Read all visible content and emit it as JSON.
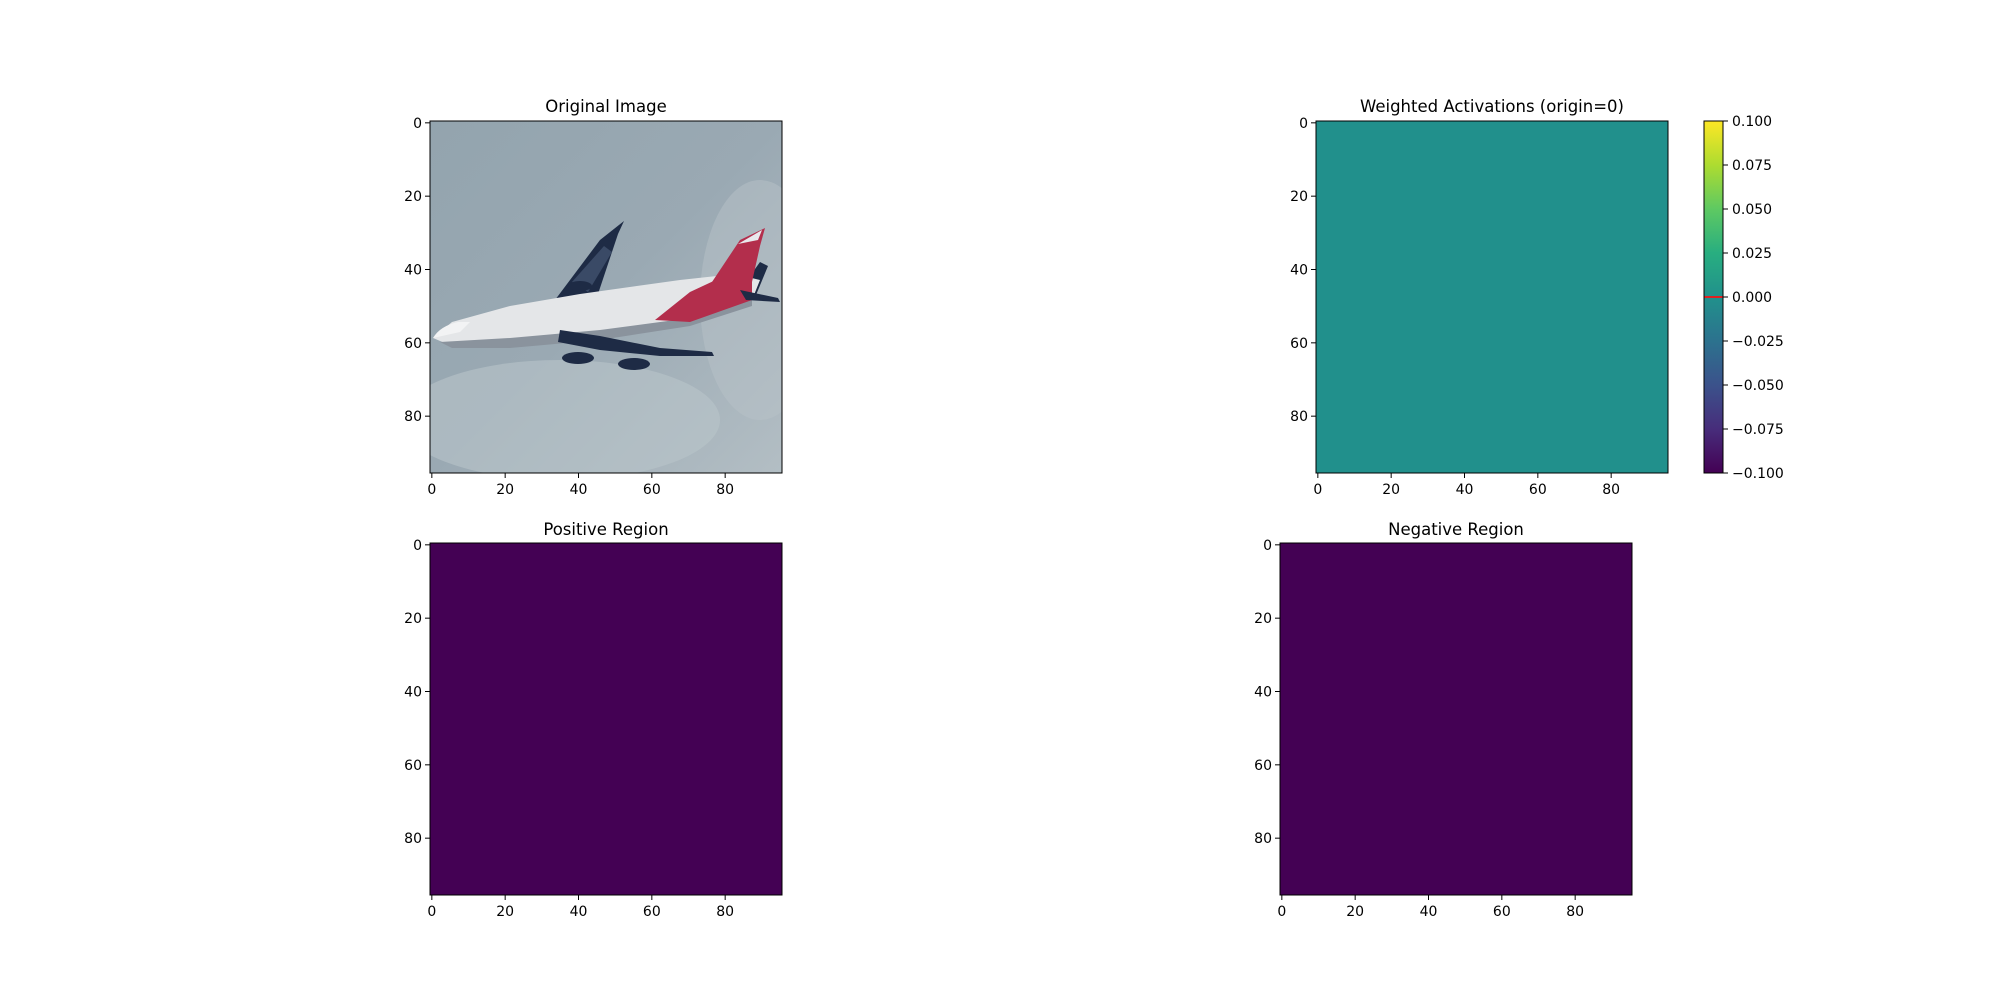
{
  "chart_data": [
    {
      "type": "heatmap",
      "title": "Original Image",
      "content": "photo of an airplane in flight",
      "xlim": [
        0,
        95
      ],
      "ylim": [
        95,
        0
      ],
      "x_ticks": [
        0,
        20,
        40,
        60,
        80
      ],
      "y_ticks": [
        0,
        20,
        40,
        60,
        80
      ],
      "colors": {
        "sky": "#9aa9b3",
        "fuselage": "#e4e6e8",
        "wing": "#1e2b45",
        "tail": "#b32e4c"
      }
    },
    {
      "type": "heatmap",
      "title": "Weighted Activations (origin=0)",
      "xlim": [
        0,
        95
      ],
      "ylim": [
        95,
        0
      ],
      "x_ticks": [
        0,
        20,
        40,
        60,
        80
      ],
      "y_ticks": [
        0,
        20,
        40,
        60,
        80
      ],
      "constant_value": 0.0,
      "fill_color": "#21908c",
      "colorbar": {
        "colormap": "viridis",
        "range": [
          -0.1,
          0.1
        ],
        "ticks": [
          "0.100",
          "0.075",
          "0.050",
          "0.025",
          "0.000",
          "−0.025",
          "−0.050",
          "−0.075",
          "−0.100"
        ],
        "tick_values": [
          0.1,
          0.075,
          0.05,
          0.025,
          0.0,
          -0.025,
          -0.05,
          -0.075,
          -0.1
        ],
        "marker_value": 0.0,
        "marker_color": "#e02020"
      }
    },
    {
      "type": "heatmap",
      "title": "Positive Region",
      "xlim": [
        0,
        95
      ],
      "ylim": [
        95,
        0
      ],
      "x_ticks": [
        0,
        20,
        40,
        60,
        80
      ],
      "y_ticks": [
        0,
        20,
        40,
        60,
        80
      ],
      "fill_color": "#440154"
    },
    {
      "type": "heatmap",
      "title": "Negative Region",
      "xlim": [
        0,
        95
      ],
      "ylim": [
        95,
        0
      ],
      "x_ticks": [
        0,
        20,
        40,
        60,
        80
      ],
      "y_ticks": [
        0,
        20,
        40,
        60,
        80
      ],
      "fill_color": "#440154"
    }
  ]
}
